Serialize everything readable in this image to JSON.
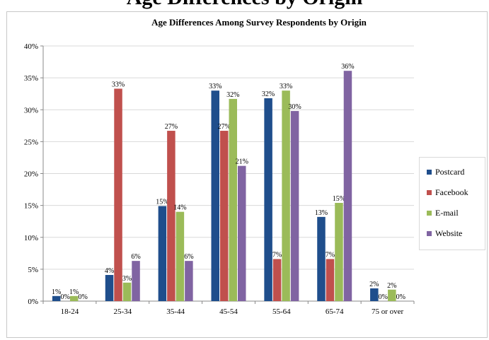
{
  "page_heading": "Age Differences by Origin",
  "chart_data": {
    "type": "bar",
    "title": "Age Differences Among Survey Respondents by Origin",
    "categories": [
      "18-24",
      "25-34",
      "35-44",
      "45-54",
      "55-64",
      "65-74",
      "75 or over"
    ],
    "series": [
      {
        "name": "Postcard",
        "color": "#1f4e8c",
        "values": [
          1,
          4,
          15,
          33,
          32,
          13,
          2
        ]
      },
      {
        "name": "Facebook",
        "color": "#c0504d",
        "values": [
          0,
          33,
          27,
          27,
          7,
          7,
          0
        ]
      },
      {
        "name": "E-mail",
        "color": "#9bbb59",
        "values": [
          1,
          3,
          14,
          32,
          33,
          15,
          2
        ]
      },
      {
        "name": "Website",
        "color": "#8064a2",
        "values": [
          0,
          6,
          6,
          21,
          30,
          36,
          0
        ]
      }
    ],
    "plotted_values": [
      [
        0.8,
        4.1,
        14.9,
        33.0,
        31.8,
        13.2,
        2.0
      ],
      [
        0.0,
        33.3,
        26.7,
        26.7,
        6.6,
        6.6,
        0.0
      ],
      [
        0.8,
        2.9,
        14.0,
        31.7,
        33.0,
        15.4,
        1.8
      ],
      [
        0.0,
        6.3,
        6.3,
        21.2,
        29.8,
        36.1,
        0.0
      ]
    ],
    "y_ticks": [
      "0%",
      "5%",
      "10%",
      "15%",
      "20%",
      "25%",
      "30%",
      "35%",
      "40%"
    ],
    "ylim": [
      0,
      40
    ],
    "y_unit": "%",
    "grid": true,
    "legend_position": "right"
  }
}
